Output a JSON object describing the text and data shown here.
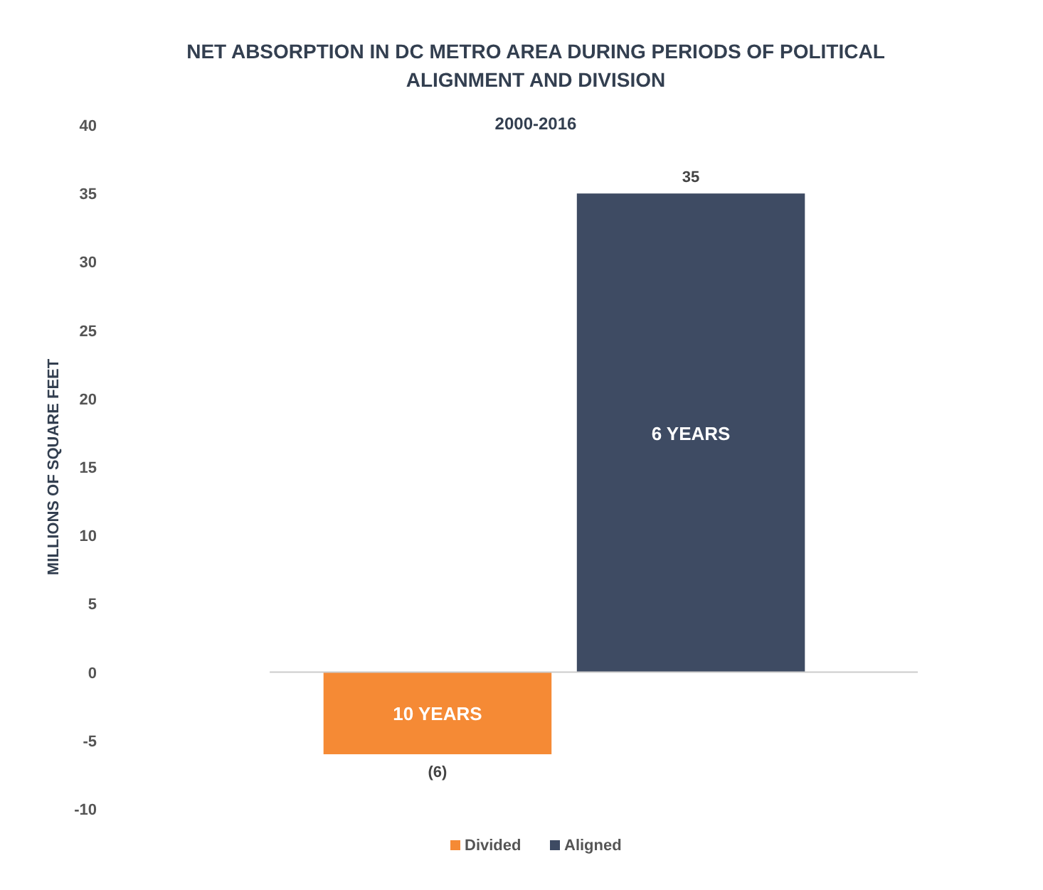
{
  "chart_data": {
    "type": "bar",
    "title": "NET ABSORPTION IN DC METRO AREA DURING PERIODS OF POLITICAL ALIGNMENT AND DIVISION",
    "subtitle": "2000-2016",
    "ylabel": "MILLIONS OF SQUARE FEET",
    "categories": [
      null
    ],
    "series": [
      {
        "name": "Divided",
        "color": "#f58a35",
        "values": [
          -6
        ],
        "value_labels": [
          "(6)"
        ]
      },
      {
        "name": "Aligned",
        "color": "#3e4b63",
        "values": [
          35
        ],
        "value_labels": [
          "35"
        ]
      }
    ],
    "annotations": [
      "10 YEARS",
      "6 YEARS"
    ],
    "ylim": [
      -10,
      40
    ],
    "yticks": [
      {
        "value": -10,
        "label": "-10"
      },
      {
        "value": -5,
        "label": "-5"
      },
      0,
      5,
      10,
      15,
      20,
      25,
      30,
      35,
      40
    ],
    "legend": "bottom"
  }
}
